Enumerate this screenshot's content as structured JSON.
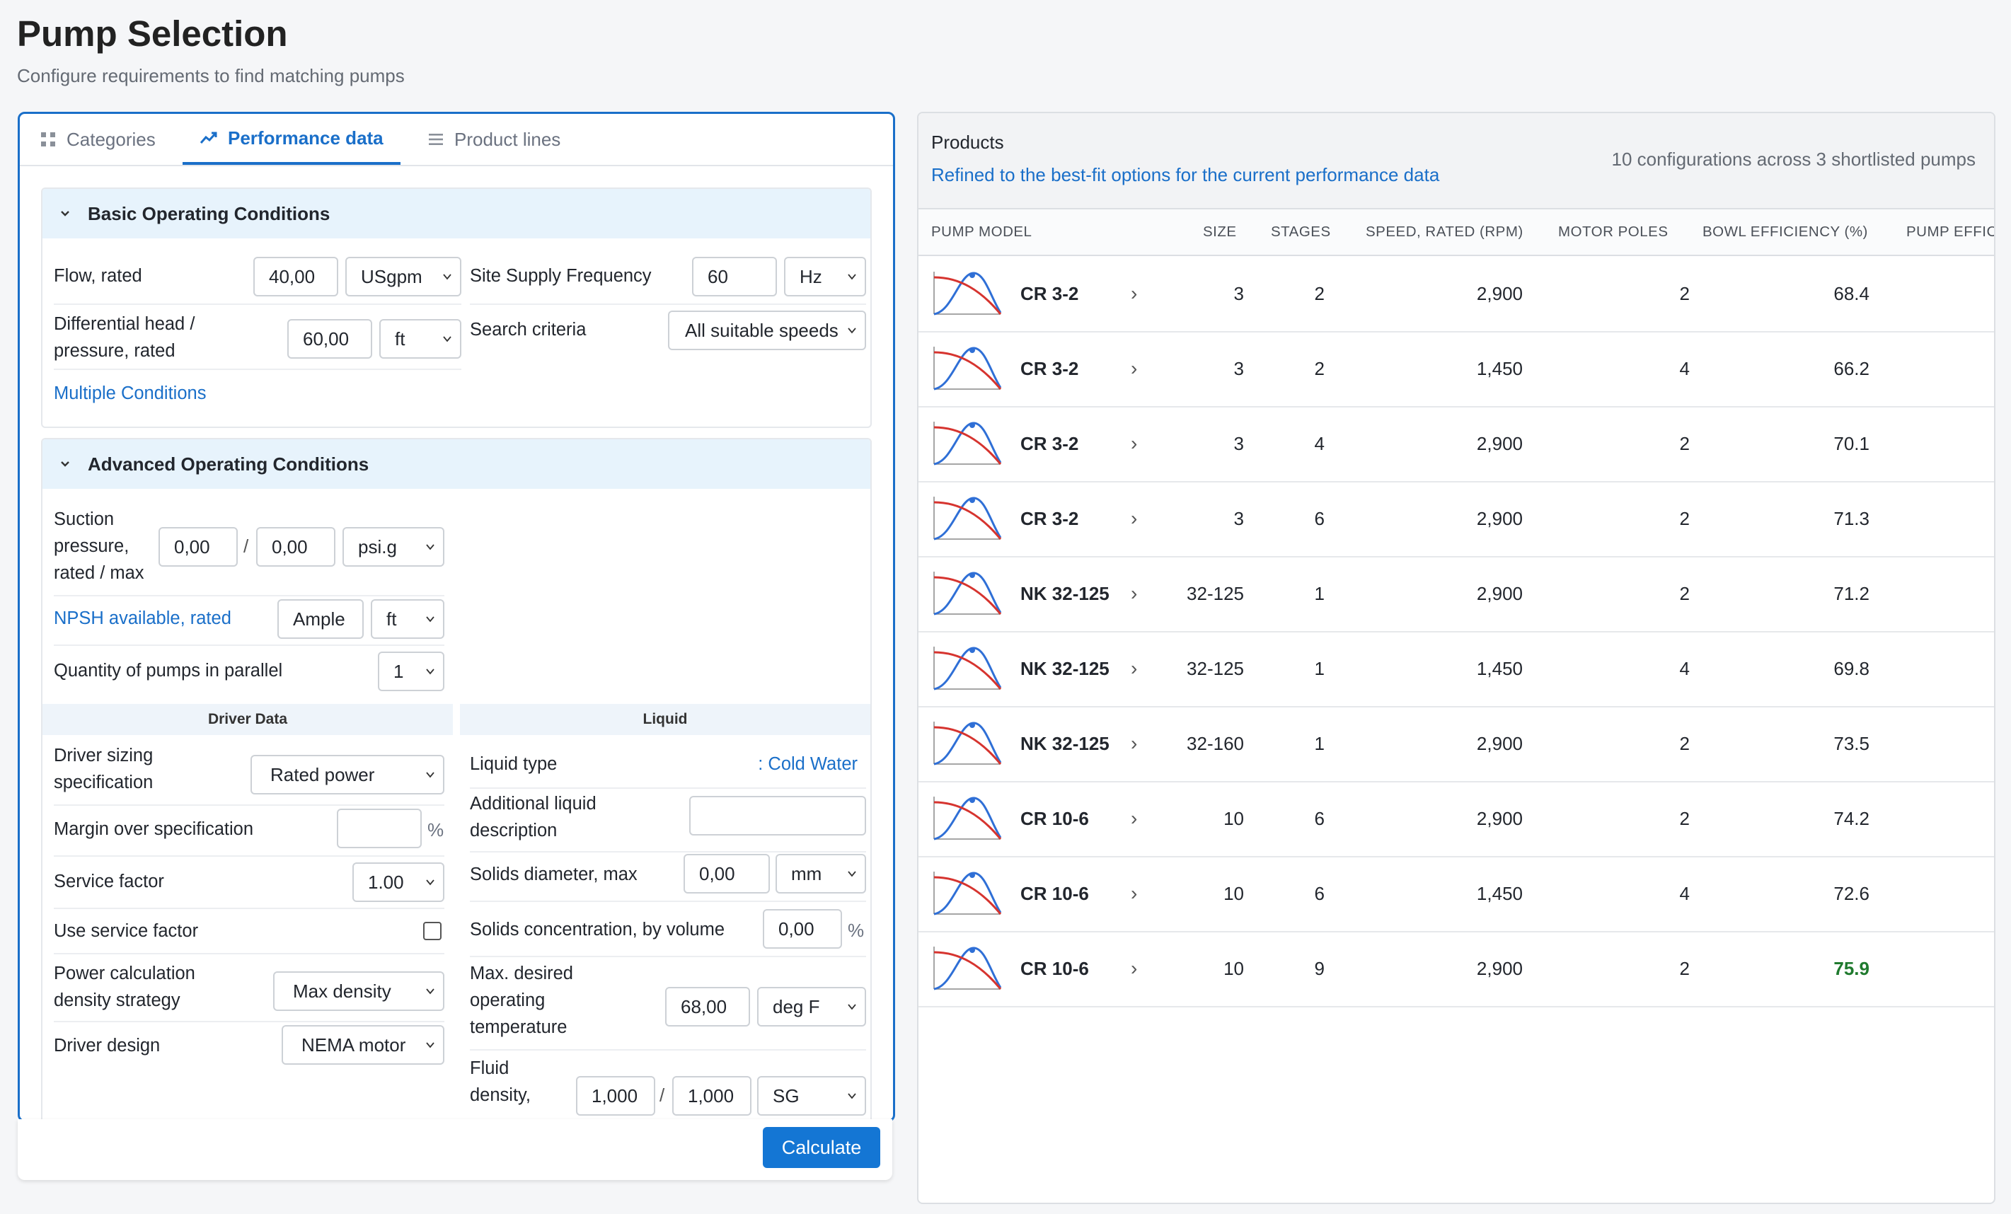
{
  "page": {
    "title": "Pump Selection",
    "subtitle": "Configure requirements to find matching pumps"
  },
  "tabs": [
    {
      "label": "Categories",
      "icon": "grid-icon",
      "active": false
    },
    {
      "label": "Performance data",
      "icon": "trend-icon",
      "active": true
    },
    {
      "label": "Product lines",
      "icon": "list-icon",
      "active": false
    }
  ],
  "basic": {
    "title": "Basic Operating Conditions",
    "flow_label": "Flow, rated",
    "flow_value": "40,00",
    "flow_unit": "USgpm",
    "head_label_1": "Differential head /",
    "head_label_2": "pressure, rated",
    "head_value": "60,00",
    "head_unit": "ft",
    "multiple_conditions": "Multiple Conditions",
    "freq_label": "Site Supply Frequency",
    "freq_value": "60",
    "freq_unit": "Hz",
    "search_label": "Search criteria",
    "search_value": "All suitable speeds"
  },
  "advanced": {
    "title": "Advanced Operating Conditions",
    "suction_label_1": "Suction",
    "suction_label_2": "pressure,",
    "suction_label_3": "rated / max",
    "suction_rated": "0,00",
    "suction_max": "0,00",
    "suction_unit": "psi.g",
    "slash": "/",
    "npsh_label": "NPSH available, rated",
    "npsh_value": "Ample",
    "npsh_unit": "ft",
    "qty_label": "Quantity of pumps in parallel",
    "qty_value": "1",
    "driver_head": "Driver Data",
    "liquid_head": "Liquid",
    "driver_sizing_1": "Driver sizing",
    "driver_sizing_2": "specification",
    "driver_sizing_value": "Rated power",
    "margin_label": "Margin over specification",
    "margin_value": "",
    "margin_unit": "%",
    "service_factor_label": "Service factor",
    "service_factor_value": "1.00",
    "use_sf_label": "Use service factor",
    "power_calc_1": "Power calculation",
    "power_calc_2": "density strategy",
    "power_calc_value": "Max density",
    "driver_design_label": "Driver design",
    "driver_design_value": "NEMA motor",
    "liquid_type_label": "Liquid type",
    "liquid_type_value": ": Cold Water",
    "add_desc_1": "Additional liquid",
    "add_desc_2": "description",
    "add_desc_value": "",
    "solids_dia_label": "Solids diameter, max",
    "solids_dia_value": "0,00",
    "solids_dia_unit": "mm",
    "solids_conc_label": "Solids concentration, by volume",
    "solids_conc_value": "0,00",
    "solids_conc_unit": "%",
    "max_temp_1": "Max. desired",
    "max_temp_2": "operating",
    "max_temp_3": "temperature",
    "max_temp_value": "68,00",
    "max_temp_unit": "deg F",
    "fluid_density_1": "Fluid",
    "fluid_density_2": "density,",
    "fluid_density_a": "1,000",
    "fluid_density_b": "1,000",
    "fluid_density_unit": "SG"
  },
  "footer": {
    "calculate": "Calculate"
  },
  "products": {
    "title": "Products",
    "subtitle": "Refined to the best-fit options for the current performance data",
    "count": "10 configurations across 3 shortlisted pumps",
    "columns": [
      "PUMP MODEL",
      "SIZE",
      "STAGES",
      "SPEED, RATED (RPM)",
      "MOTOR POLES",
      "BOWL EFFICIENCY (%)",
      "PUMP EFFIC"
    ],
    "highlight_color": "#1f7a2e",
    "rows": [
      {
        "model": "CR 3-2",
        "size": "3",
        "stages": "2",
        "speed": "2,900",
        "poles": "2",
        "bowl_eff": "68.4"
      },
      {
        "model": "CR 3-2",
        "size": "3",
        "stages": "2",
        "speed": "1,450",
        "poles": "4",
        "bowl_eff": "66.2"
      },
      {
        "model": "CR 3-2",
        "size": "3",
        "stages": "4",
        "speed": "2,900",
        "poles": "2",
        "bowl_eff": "70.1"
      },
      {
        "model": "CR 3-2",
        "size": "3",
        "stages": "6",
        "speed": "2,900",
        "poles": "2",
        "bowl_eff": "71.3"
      },
      {
        "model": "NK 32-125",
        "size": "32-125",
        "stages": "1",
        "speed": "2,900",
        "poles": "2",
        "bowl_eff": "71.2"
      },
      {
        "model": "NK 32-125",
        "size": "32-125",
        "stages": "1",
        "speed": "1,450",
        "poles": "4",
        "bowl_eff": "69.8"
      },
      {
        "model": "NK 32-125",
        "size": "32-160",
        "stages": "1",
        "speed": "2,900",
        "poles": "2",
        "bowl_eff": "73.5"
      },
      {
        "model": "CR 10-6",
        "size": "10",
        "stages": "6",
        "speed": "2,900",
        "poles": "2",
        "bowl_eff": "74.2"
      },
      {
        "model": "CR 10-6",
        "size": "10",
        "stages": "6",
        "speed": "1,450",
        "poles": "4",
        "bowl_eff": "72.6"
      },
      {
        "model": "CR 10-6",
        "size": "10",
        "stages": "9",
        "speed": "2,900",
        "poles": "2",
        "bowl_eff": "75.9",
        "best": true
      }
    ]
  }
}
